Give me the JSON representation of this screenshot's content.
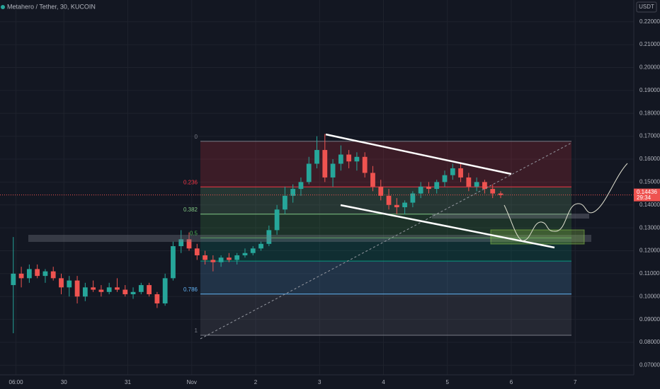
{
  "chart_data": {
    "type": "candlestick",
    "title": "Metahero / Tether, 30, KUCOIN",
    "currency": "USDT",
    "x": [
      5,
      8,
      11,
      14,
      17,
      20,
      23,
      26,
      29,
      32,
      35,
      38,
      41,
      44,
      47,
      50,
      53,
      56,
      59,
      62,
      65,
      68,
      71,
      74,
      77,
      80,
      83,
      86,
      89,
      92,
      95,
      98,
      101,
      104,
      107,
      110,
      113,
      116,
      119,
      122,
      125,
      128,
      131,
      134,
      137,
      140,
      143,
      146,
      149,
      152,
      155,
      158,
      161,
      164,
      167,
      170,
      173,
      176,
      179,
      182,
      185,
      188
    ],
    "open": [
      0.105,
      0.11,
      0.108,
      0.112,
      0.109,
      0.111,
      0.108,
      0.104,
      0.107,
      0.1,
      0.104,
      0.103,
      0.102,
      0.104,
      0.103,
      0.101,
      0.102,
      0.105,
      0.101,
      0.097,
      0.108,
      0.122,
      0.125,
      0.121,
      0.118,
      0.116,
      0.115,
      0.117,
      0.116,
      0.118,
      0.119,
      0.121,
      0.123,
      0.129,
      0.138,
      0.144,
      0.147,
      0.15,
      0.158,
      0.164,
      0.152,
      0.158,
      0.162,
      0.159,
      0.161,
      0.154,
      0.148,
      0.144,
      0.14,
      0.139,
      0.141,
      0.145,
      0.148,
      0.147,
      0.15,
      0.153,
      0.156,
      0.152,
      0.148,
      0.15,
      0.147,
      0.145
    ],
    "high": [
      0.126,
      0.113,
      0.114,
      0.114,
      0.112,
      0.113,
      0.11,
      0.109,
      0.109,
      0.106,
      0.107,
      0.105,
      0.106,
      0.108,
      0.105,
      0.104,
      0.106,
      0.106,
      0.102,
      0.11,
      0.124,
      0.129,
      0.128,
      0.123,
      0.12,
      0.118,
      0.118,
      0.119,
      0.119,
      0.121,
      0.122,
      0.124,
      0.131,
      0.14,
      0.148,
      0.149,
      0.152,
      0.161,
      0.17,
      0.171,
      0.16,
      0.166,
      0.164,
      0.163,
      0.163,
      0.157,
      0.151,
      0.147,
      0.143,
      0.142,
      0.146,
      0.15,
      0.15,
      0.151,
      0.155,
      0.158,
      0.158,
      0.154,
      0.152,
      0.151,
      0.149,
      0.146
    ],
    "low": [
      0.084,
      0.104,
      0.106,
      0.108,
      0.106,
      0.107,
      0.101,
      0.1,
      0.097,
      0.098,
      0.102,
      0.1,
      0.101,
      0.102,
      0.1,
      0.099,
      0.101,
      0.1,
      0.095,
      0.096,
      0.107,
      0.119,
      0.12,
      0.116,
      0.114,
      0.111,
      0.113,
      0.115,
      0.114,
      0.117,
      0.118,
      0.12,
      0.122,
      0.127,
      0.136,
      0.141,
      0.144,
      0.149,
      0.156,
      0.15,
      0.148,
      0.155,
      0.156,
      0.155,
      0.152,
      0.146,
      0.142,
      0.138,
      0.136,
      0.136,
      0.139,
      0.143,
      0.145,
      0.145,
      0.148,
      0.151,
      0.15,
      0.146,
      0.146,
      0.145,
      0.143,
      0.143
    ],
    "close": [
      0.11,
      0.108,
      0.112,
      0.109,
      0.111,
      0.108,
      0.104,
      0.107,
      0.1,
      0.104,
      0.103,
      0.102,
      0.104,
      0.103,
      0.101,
      0.102,
      0.105,
      0.101,
      0.097,
      0.108,
      0.122,
      0.125,
      0.121,
      0.118,
      0.116,
      0.115,
      0.117,
      0.116,
      0.118,
      0.119,
      0.121,
      0.123,
      0.129,
      0.138,
      0.144,
      0.147,
      0.15,
      0.158,
      0.164,
      0.152,
      0.158,
      0.162,
      0.159,
      0.161,
      0.154,
      0.148,
      0.144,
      0.14,
      0.139,
      0.141,
      0.145,
      0.148,
      0.147,
      0.15,
      0.153,
      0.156,
      0.152,
      0.148,
      0.15,
      0.147,
      0.145,
      0.14436
    ],
    "up_color": "#26a69a",
    "down_color": "#ef5350",
    "last_price": 0.14436,
    "countdown": "29:34",
    "xlim": [
      0,
      238
    ],
    "xticks": [
      {
        "value": 6,
        "label": "06:00"
      },
      {
        "value": 24,
        "label": "30"
      },
      {
        "value": 48,
        "label": "31"
      },
      {
        "value": 72,
        "label": "Nov"
      },
      {
        "value": 96,
        "label": "2"
      },
      {
        "value": 120,
        "label": "3"
      },
      {
        "value": 144,
        "label": "4"
      },
      {
        "value": 168,
        "label": "5"
      },
      {
        "value": 192,
        "label": "6"
      },
      {
        "value": 216,
        "label": "7"
      }
    ],
    "ylim": [
      0.0658,
      0.2295
    ],
    "yticks": [
      {
        "value": 0.07,
        "label": "0.07000"
      },
      {
        "value": 0.08,
        "label": "0.08000"
      },
      {
        "value": 0.09,
        "label": "0.09000"
      },
      {
        "value": 0.1,
        "label": "0.10000"
      },
      {
        "value": 0.11,
        "label": "0.11000"
      },
      {
        "value": 0.12,
        "label": "0.12000"
      },
      {
        "value": 0.13,
        "label": "0.13000"
      },
      {
        "value": 0.14,
        "label": "0.14000"
      },
      {
        "value": 0.15,
        "label": "0.15000"
      },
      {
        "value": 0.16,
        "label": "0.16000"
      },
      {
        "value": 0.17,
        "label": "0.17000"
      },
      {
        "value": 0.18,
        "label": "0.18000"
      },
      {
        "value": 0.19,
        "label": "0.19000"
      },
      {
        "value": 0.2,
        "label": "0.20000"
      },
      {
        "value": 0.21,
        "label": "0.21000"
      },
      {
        "value": 0.22,
        "label": "0.22000"
      }
    ],
    "fib": [
      {
        "ratio": 0,
        "price": 0.1678,
        "color": "#787b86"
      },
      {
        "ratio": 0.236,
        "price": 0.1479,
        "color": "#f23645"
      },
      {
        "ratio": 0.382,
        "price": 0.136,
        "color": "#81c784"
      },
      {
        "ratio": 0.5,
        "price": 0.1256,
        "color": "#4caf50"
      },
      {
        "price": 0.1155,
        "color": "#089981"
      },
      {
        "ratio": 0.786,
        "price": 0.1011,
        "color": "#64b5f6"
      },
      {
        "ratio": 1,
        "price": 0.0831,
        "color": "#787b86"
      }
    ]
  }
}
